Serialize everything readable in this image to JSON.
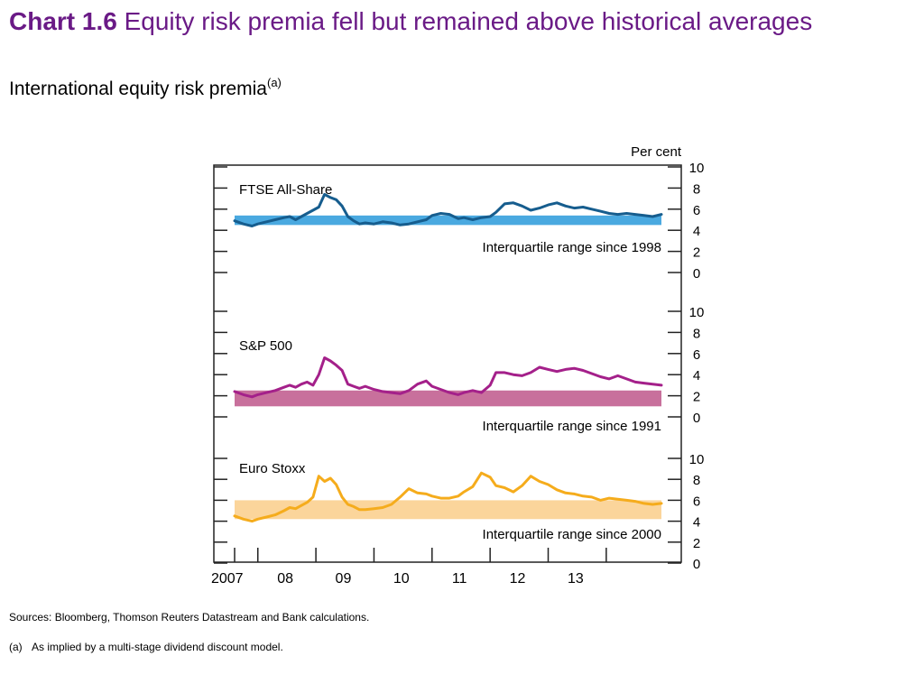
{
  "header": {
    "chart_number": "Chart 1.6",
    "title": "Equity risk premia fell but remained above historical averages",
    "subtitle": "International equity risk premia",
    "subtitle_note": "(a)"
  },
  "footer": {
    "sources": "Sources: Bloomberg, Thomson Reuters Datastream and Bank calculations.",
    "footnote_mark": "(a)",
    "footnote_text": "As implied by a multi-stage dividend discount model."
  },
  "chart_data": {
    "type": "line",
    "unit_label": "Per cent",
    "x_ticks": [
      "2007",
      "08",
      "09",
      "10",
      "11",
      "12",
      "13"
    ],
    "xlim": [
      2006.6,
      2013.95
    ],
    "panels": [
      {
        "name": "FTSE All-Share",
        "range_label": "Interquartile range since 1998",
        "color": "#165d8e",
        "band_color": "#4aa9e0",
        "band": [
          4.5,
          5.4
        ],
        "ylim": [
          0,
          10
        ],
        "yticks": [
          0,
          2,
          4,
          6,
          8,
          10
        ],
        "x": [
          2006.6,
          2006.75,
          2006.9,
          2007.0,
          2007.15,
          2007.3,
          2007.45,
          2007.55,
          2007.65,
          2007.75,
          2007.85,
          2007.95,
          2008.05,
          2008.15,
          2008.25,
          2008.35,
          2008.45,
          2008.55,
          2008.65,
          2008.75,
          2008.85,
          2009.0,
          2009.15,
          2009.3,
          2009.45,
          2009.6,
          2009.75,
          2009.9,
          2010.0,
          2010.15,
          2010.3,
          2010.45,
          2010.55,
          2010.7,
          2010.85,
          2011.0,
          2011.1,
          2011.25,
          2011.4,
          2011.55,
          2011.7,
          2011.85,
          2012.0,
          2012.15,
          2012.3,
          2012.45,
          2012.6,
          2012.75,
          2012.9,
          2013.05,
          2013.2,
          2013.35,
          2013.5,
          2013.65,
          2013.8,
          2013.95
        ],
        "values": [
          4.9,
          4.6,
          4.4,
          4.6,
          4.8,
          5.0,
          5.2,
          5.3,
          5.0,
          5.3,
          5.6,
          5.9,
          6.2,
          7.4,
          7.1,
          6.9,
          6.3,
          5.3,
          4.9,
          4.6,
          4.7,
          4.6,
          4.8,
          4.7,
          4.5,
          4.6,
          4.8,
          5.0,
          5.4,
          5.6,
          5.5,
          5.1,
          5.2,
          5.0,
          5.2,
          5.3,
          5.7,
          6.5,
          6.6,
          6.3,
          5.9,
          6.1,
          6.4,
          6.6,
          6.3,
          6.1,
          6.2,
          6.0,
          5.8,
          5.6,
          5.5,
          5.6,
          5.5,
          5.4,
          5.3,
          5.5
        ]
      },
      {
        "name": "S&P 500",
        "range_label": "Interquartile range since 1991",
        "color": "#a4208a",
        "band_color": "#c8709c",
        "band": [
          1.0,
          2.5
        ],
        "ylim": [
          0,
          10
        ],
        "yticks": [
          0,
          2,
          4,
          6,
          8,
          10
        ],
        "x": [
          2006.6,
          2006.75,
          2006.9,
          2007.0,
          2007.15,
          2007.3,
          2007.45,
          2007.55,
          2007.65,
          2007.75,
          2007.85,
          2007.95,
          2008.05,
          2008.15,
          2008.25,
          2008.35,
          2008.45,
          2008.55,
          2008.65,
          2008.75,
          2008.85,
          2009.0,
          2009.15,
          2009.3,
          2009.45,
          2009.6,
          2009.75,
          2009.9,
          2010.0,
          2010.15,
          2010.3,
          2010.45,
          2010.55,
          2010.7,
          2010.85,
          2011.0,
          2011.1,
          2011.25,
          2011.4,
          2011.55,
          2011.7,
          2011.85,
          2012.0,
          2012.15,
          2012.3,
          2012.45,
          2012.6,
          2012.75,
          2012.9,
          2013.05,
          2013.2,
          2013.35,
          2013.5,
          2013.65,
          2013.8,
          2013.95
        ],
        "values": [
          2.4,
          2.1,
          1.9,
          2.1,
          2.3,
          2.5,
          2.8,
          3.0,
          2.8,
          3.1,
          3.3,
          3.0,
          4.0,
          5.6,
          5.3,
          4.9,
          4.4,
          3.1,
          2.9,
          2.7,
          2.9,
          2.6,
          2.4,
          2.3,
          2.2,
          2.5,
          3.1,
          3.4,
          2.9,
          2.6,
          2.3,
          2.1,
          2.3,
          2.5,
          2.3,
          3.0,
          4.2,
          4.2,
          4.0,
          3.9,
          4.2,
          4.7,
          4.5,
          4.3,
          4.5,
          4.6,
          4.4,
          4.1,
          3.8,
          3.6,
          3.9,
          3.6,
          3.3,
          3.2,
          3.1,
          3.0
        ]
      },
      {
        "name": "Euro Stoxx",
        "range_label": "Interquartile range since 2000",
        "color": "#f5ac1c",
        "band_color": "#fbd59b",
        "band": [
          4.2,
          6.0
        ],
        "ylim": [
          0,
          10
        ],
        "yticks": [
          0,
          2,
          4,
          6,
          8,
          10
        ],
        "x": [
          2006.6,
          2006.75,
          2006.9,
          2007.0,
          2007.15,
          2007.3,
          2007.45,
          2007.55,
          2007.65,
          2007.75,
          2007.85,
          2007.95,
          2008.05,
          2008.15,
          2008.25,
          2008.35,
          2008.45,
          2008.55,
          2008.65,
          2008.75,
          2008.85,
          2009.0,
          2009.15,
          2009.3,
          2009.45,
          2009.6,
          2009.75,
          2009.9,
          2010.0,
          2010.15,
          2010.3,
          2010.45,
          2010.55,
          2010.7,
          2010.85,
          2011.0,
          2011.1,
          2011.25,
          2011.4,
          2011.55,
          2011.7,
          2011.85,
          2012.0,
          2012.15,
          2012.3,
          2012.45,
          2012.6,
          2012.75,
          2012.9,
          2013.05,
          2013.2,
          2013.35,
          2013.5,
          2013.65,
          2013.8,
          2013.95
        ],
        "values": [
          4.5,
          4.2,
          4.0,
          4.2,
          4.4,
          4.6,
          5.0,
          5.3,
          5.2,
          5.5,
          5.8,
          6.3,
          8.3,
          7.8,
          8.1,
          7.5,
          6.3,
          5.6,
          5.4,
          5.1,
          5.1,
          5.2,
          5.3,
          5.6,
          6.3,
          7.1,
          6.7,
          6.6,
          6.4,
          6.2,
          6.2,
          6.4,
          6.8,
          7.3,
          8.6,
          8.2,
          7.4,
          7.2,
          6.8,
          7.4,
          8.3,
          7.8,
          7.5,
          7.0,
          6.7,
          6.6,
          6.4,
          6.3,
          6.0,
          6.2,
          6.1,
          6.0,
          5.9,
          5.7,
          5.6,
          5.7
        ]
      }
    ]
  }
}
